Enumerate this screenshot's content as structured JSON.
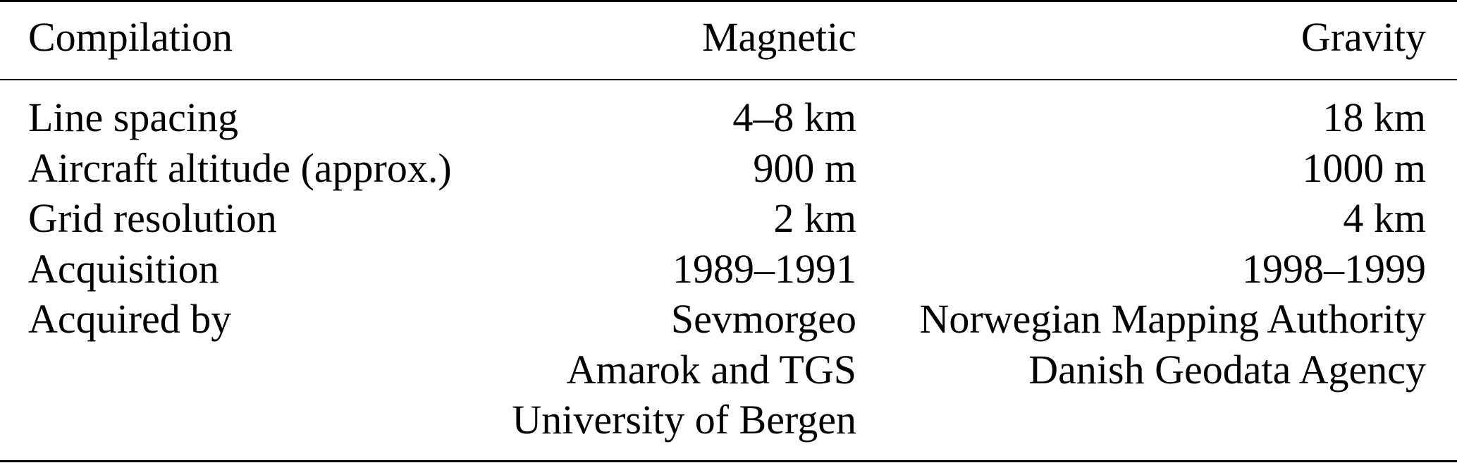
{
  "table": {
    "headers": [
      "Compilation",
      "Magnetic",
      "Gravity"
    ],
    "rows": [
      [
        "Line spacing",
        "4–8 km",
        "18 km"
      ],
      [
        "Aircraft altitude (approx.)",
        "900 m",
        "1000 m"
      ],
      [
        "Grid resolution",
        "2 km",
        "4 km"
      ],
      [
        "Acquisition",
        "1989–1991",
        "1998–1999"
      ],
      [
        "Acquired by",
        "Sevmorgeo",
        "Norwegian Mapping Authority"
      ],
      [
        "",
        "Amarok and TGS",
        "Danish Geodata Agency"
      ],
      [
        "",
        "University of Bergen",
        ""
      ]
    ]
  }
}
